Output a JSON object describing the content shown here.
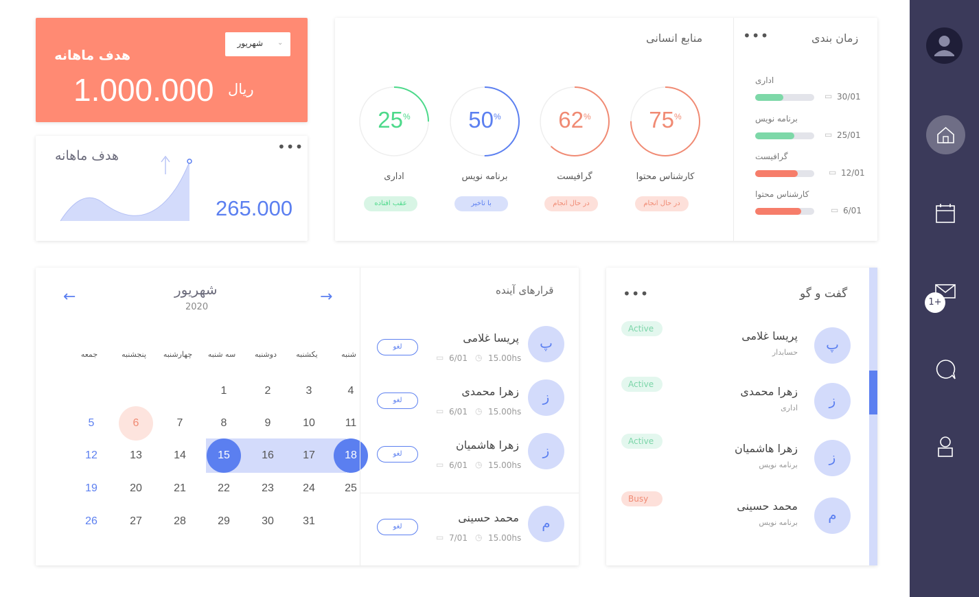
{
  "sidebar": {
    "icons": [
      "avatar-icon",
      "home-icon",
      "calendar-icon",
      "mail-icon",
      "chat-icon",
      "user-icon"
    ],
    "mail_badge": "1+"
  },
  "goal": {
    "title": "هدف ماهانه",
    "month": "شهریور",
    "amount": "1.000.000",
    "currency": "ریال"
  },
  "monthly": {
    "title": "هدف ماهانه",
    "value": "265.000"
  },
  "hr": {
    "title": "منابع انسانی",
    "items": [
      {
        "value": "25",
        "pct": "%",
        "label": "اداری",
        "status": "عقب افتاده",
        "color": "#4cd98a",
        "fraction": 0.25,
        "pill_bg": "#d8f5e5",
        "pill_fg": "#4cd98a"
      },
      {
        "value": "50",
        "pct": "%",
        "label": "برنامه نویس",
        "status": "با تاخیر",
        "color": "#5b7ff0",
        "fraction": 0.5,
        "pill_bg": "#d8e0fb",
        "pill_fg": "#5b7ff0"
      },
      {
        "value": "62",
        "pct": "%",
        "label": "گرافیست",
        "status": "در حال انجام",
        "color": "#f08a73",
        "fraction": 0.62,
        "pill_bg": "#fde0da",
        "pill_fg": "#f08a73"
      },
      {
        "value": "75",
        "pct": "%",
        "label": "کارشناس محتوا",
        "status": "در حال انجام",
        "color": "#f08a73",
        "fraction": 0.75,
        "pill_bg": "#fde0da",
        "pill_fg": "#f08a73"
      }
    ]
  },
  "schedule": {
    "title": "زمان بندی",
    "items": [
      {
        "label": "اداری",
        "date": "30/01",
        "fraction": 0.48,
        "color": "#7dd8a8"
      },
      {
        "label": "برنامه نویس",
        "date": "25/01",
        "fraction": 0.66,
        "color": "#7dd8a8"
      },
      {
        "label": "گرافیست",
        "date": "12/01",
        "fraction": 0.72,
        "color": "#f67d6a"
      },
      {
        "label": "کارشناس محتوا",
        "date": "6/01",
        "fraction": 0.78,
        "color": "#f67d6a"
      }
    ]
  },
  "calendar": {
    "month": "شهریور",
    "year": "2020",
    "weekdays": [
      "شنبه",
      "یکشنبه",
      "دوشنبه",
      "سه شنبه",
      "چهارشنبه",
      "پنجشنبه",
      "جمعه"
    ],
    "weeks": [
      [
        "4",
        "3",
        "2",
        "1",
        "",
        "",
        ""
      ],
      [
        "11",
        "10",
        "9",
        "8",
        "7",
        "6",
        "5"
      ],
      [
        "18",
        "17",
        "16",
        "15",
        "14",
        "13",
        "12"
      ],
      [
        "25",
        "24",
        "23",
        "22",
        "21",
        "20",
        "19"
      ],
      [
        "",
        "31",
        "30",
        "29",
        "28",
        "27",
        "26"
      ]
    ],
    "today": "6",
    "range_start": "15",
    "range_end": "18"
  },
  "meetings": {
    "title": "قرارهای آینده",
    "cancel_label": "لغو",
    "items": [
      {
        "initial": "پ",
        "name": "پریسا غلامی",
        "time": "15.00hs",
        "date": "6/01"
      },
      {
        "initial": "ز",
        "name": "زهرا محمدی",
        "time": "15.00hs",
        "date": "6/01"
      },
      {
        "initial": "ز",
        "name": "زهرا هاشمیان",
        "time": "15.00hs",
        "date": "6/01"
      },
      {
        "initial": "م",
        "name": "محمد حسینی",
        "time": "15.00hs",
        "date": "7/01"
      }
    ]
  },
  "chat": {
    "title": "گفت و گو",
    "items": [
      {
        "initial": "پ",
        "name": "پریسا غلامی",
        "role": "حسابدار",
        "status": "Active"
      },
      {
        "initial": "ز",
        "name": "زهرا محمدی",
        "role": "اداری",
        "status": "Active"
      },
      {
        "initial": "ز",
        "name": "زهرا هاشمیان",
        "role": "برنامه نویس",
        "status": "Active"
      },
      {
        "initial": "م",
        "name": "محمد حسینی",
        "role": "برنامه نویس",
        "status": "Busy"
      }
    ]
  }
}
